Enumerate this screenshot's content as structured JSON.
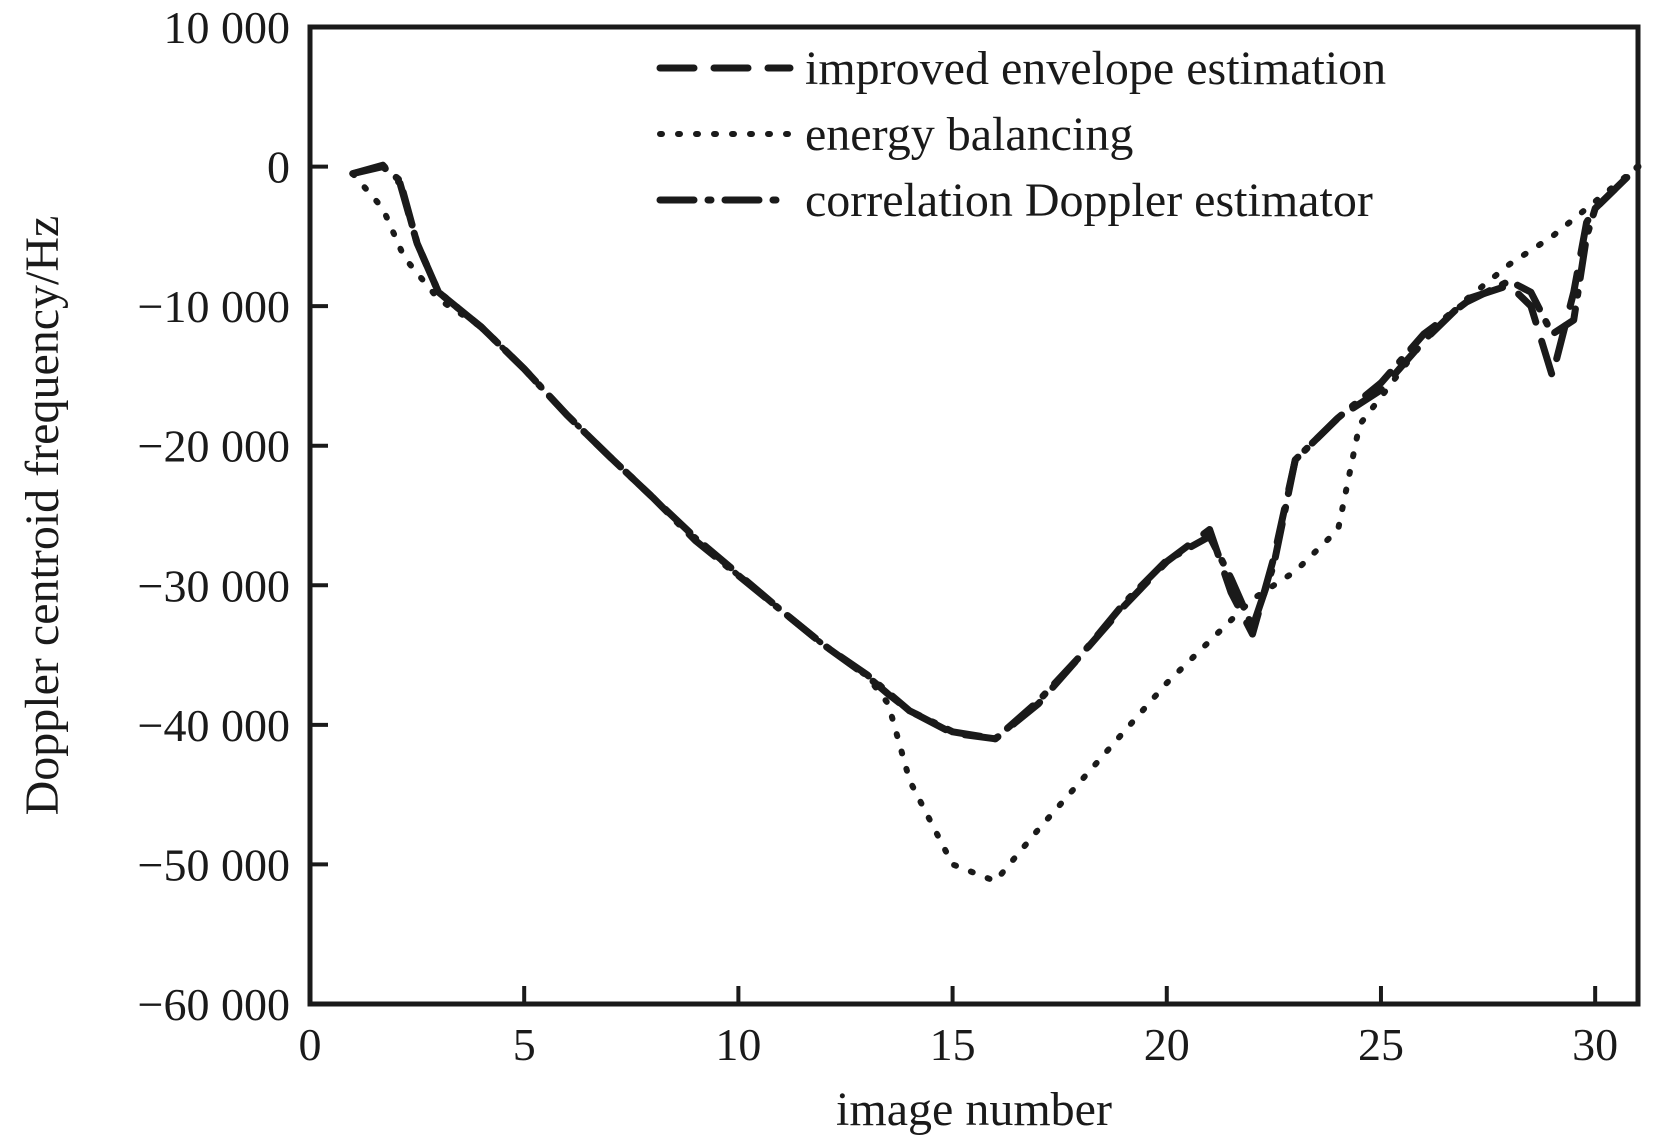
{
  "chart_data": {
    "type": "line",
    "title": "",
    "xlabel": "image number",
    "ylabel": "Doppler centroid frequency/Hz",
    "xlim": [
      0,
      31
    ],
    "ylim": [
      -60000,
      10000
    ],
    "x_ticks": [
      0,
      5,
      10,
      15,
      20,
      25,
      30
    ],
    "x_tick_labels": [
      "0",
      "5",
      "10",
      "15",
      "20",
      "25",
      "30"
    ],
    "y_ticks": [
      10000,
      0,
      -10000,
      -20000,
      -30000,
      -40000,
      -50000,
      -60000
    ],
    "y_tick_labels": [
      "10 000",
      "0",
      "−10 000",
      "−20 000",
      "−30 000",
      "−40 000",
      "−50 000",
      "−60 000"
    ],
    "grid": false,
    "legend_position": "top-right",
    "series": [
      {
        "name": "improved envelope estimation",
        "style": "dashed",
        "color": "#1a1a1a",
        "x": [
          1,
          1.7,
          2.1,
          2.5,
          3,
          4,
          5,
          6,
          7,
          8,
          9,
          10,
          11,
          12,
          13,
          13.5,
          14,
          15,
          16,
          17,
          18,
          19,
          20,
          21,
          21.5,
          22,
          22.5,
          23,
          24,
          25,
          26,
          27,
          28,
          28.5,
          29,
          29.5,
          29.8,
          30,
          30.5,
          31
        ],
        "y": [
          -500,
          100,
          -1200,
          -5500,
          -9000,
          -11500,
          -14500,
          -17800,
          -20800,
          -23700,
          -26600,
          -29200,
          -31800,
          -34300,
          -36500,
          -37800,
          -39000,
          -40600,
          -41000,
          -38500,
          -35000,
          -31500,
          -28300,
          -26000,
          -30500,
          -33500,
          -28000,
          -21000,
          -18000,
          -16000,
          -12500,
          -9500,
          -8500,
          -10000,
          -15000,
          -9000,
          -4000,
          -3000,
          -1500,
          0
        ]
      },
      {
        "name": "energy balancing",
        "style": "dotted",
        "color": "#1a1a1a",
        "x": [
          1,
          1.7,
          2.2,
          3,
          4,
          5,
          6,
          7,
          8,
          9,
          10,
          11,
          12,
          13,
          13.5,
          14,
          15,
          16,
          17,
          18,
          19,
          20,
          21,
          22,
          23,
          24,
          24.5,
          25,
          26,
          27,
          28,
          29,
          30,
          31
        ],
        "y": [
          -500,
          -3000,
          -6500,
          -9500,
          -11500,
          -14500,
          -17800,
          -20800,
          -23700,
          -26600,
          -29300,
          -31800,
          -34300,
          -36500,
          -38500,
          -44000,
          -50000,
          -51200,
          -47500,
          -44000,
          -40500,
          -37000,
          -34000,
          -31000,
          -29000,
          -26000,
          -18500,
          -16500,
          -12500,
          -9500,
          -7000,
          -5000,
          -2500,
          0
        ]
      },
      {
        "name": "correlation Doppler estimator",
        "style": "dash-dot",
        "color": "#1a1a1a",
        "x": [
          1,
          1.7,
          2.1,
          2.5,
          3,
          4,
          5,
          6,
          7,
          8,
          9,
          10,
          11,
          12,
          13,
          14,
          15,
          16,
          17,
          18,
          19,
          20,
          21,
          21.5,
          22,
          22.5,
          23,
          24,
          25,
          26,
          27,
          28,
          28.5,
          29,
          29.5,
          29.8,
          30,
          30.5,
          31
        ],
        "y": [
          -500,
          0,
          -1000,
          -5500,
          -9000,
          -11500,
          -14500,
          -17800,
          -20800,
          -23700,
          -26800,
          -29300,
          -31800,
          -34300,
          -36400,
          -39000,
          -40500,
          -41000,
          -38300,
          -35000,
          -31300,
          -28200,
          -26500,
          -29500,
          -33000,
          -28500,
          -21000,
          -18000,
          -15500,
          -12000,
          -9700,
          -8200,
          -9000,
          -12000,
          -11000,
          -5000,
          -3000,
          -1500,
          0
        ]
      }
    ]
  }
}
